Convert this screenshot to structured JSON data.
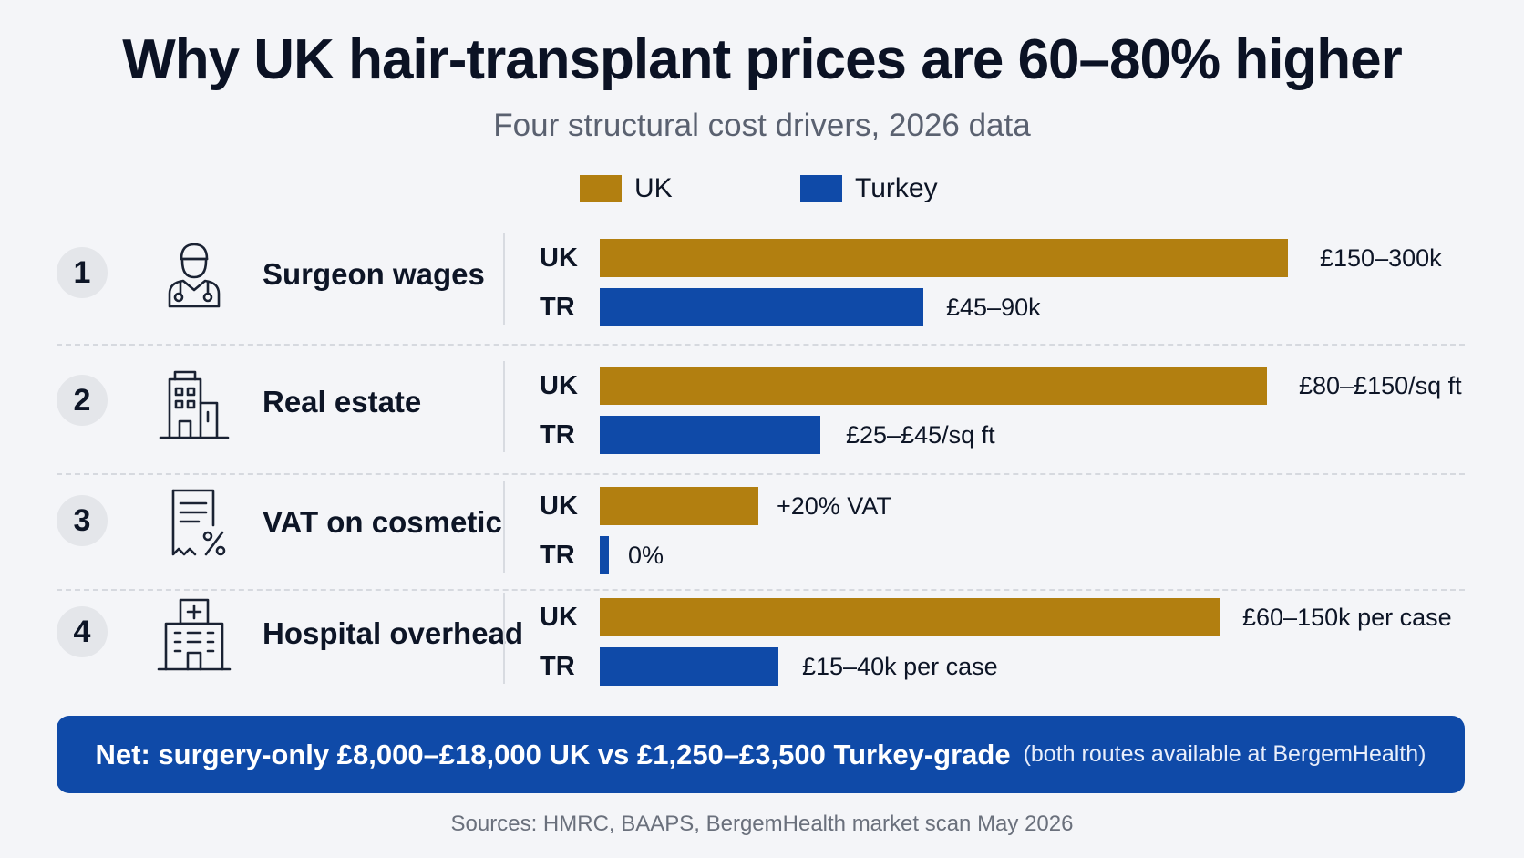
{
  "title": "Why UK hair-transplant prices are 60–80% higher",
  "subtitle": "Four structural cost drivers, 2026 data",
  "legend": [
    {
      "label": "UK",
      "color": "#b27f10"
    },
    {
      "label": "Turkey",
      "color": "#0f4aa8"
    }
  ],
  "colors": {
    "uk": "#b27f10",
    "tr": "#0f4aa8",
    "banner": "#0f4aa8"
  },
  "chart_data": {
    "type": "bar",
    "orientation": "horizontal",
    "grouping": "paired",
    "scale": "relative bar lengths (values shown as labels)",
    "series": [
      {
        "name": "UK",
        "color": "#b27f10"
      },
      {
        "name": "Turkey",
        "color": "#0f4aa8"
      }
    ],
    "categories": [
      {
        "number": "1",
        "label": "Surgeon wages",
        "icon": "surgeon-icon",
        "uk": {
          "code": "UK",
          "value": 1.0,
          "label": "£150–300k"
        },
        "tr": {
          "code": "TR",
          "value": 0.47,
          "label": "£45–90k"
        }
      },
      {
        "number": "2",
        "label": "Real estate",
        "icon": "building-icon",
        "uk": {
          "code": "UK",
          "value": 0.97,
          "label": "£80–£150/sq ft"
        },
        "tr": {
          "code": "TR",
          "value": 0.32,
          "label": "£25–£45/sq ft"
        }
      },
      {
        "number": "3",
        "label": "VAT on cosmetic",
        "icon": "tax-receipt-icon",
        "uk": {
          "code": "UK",
          "value": 0.23,
          "label": "+20% VAT"
        },
        "tr": {
          "code": "TR",
          "value": 0.012,
          "label": "0%"
        }
      },
      {
        "number": "4",
        "label": "Hospital overhead",
        "icon": "hospital-icon",
        "uk": {
          "code": "UK",
          "value": 0.9,
          "label": "£60–150k per case"
        },
        "tr": {
          "code": "TR",
          "value": 0.26,
          "label": "£15–40k per case"
        }
      }
    ]
  },
  "banner": {
    "strong": "Net: surgery-only £8,000–£18,000 UK vs £1,250–£3,500 Turkey-grade",
    "soft": "(both routes available at BergemHealth)"
  },
  "sources": "Sources: HMRC, BAAPS, BergemHealth market scan May 2026"
}
